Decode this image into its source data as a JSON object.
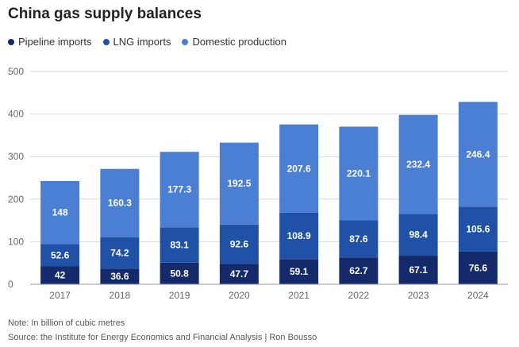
{
  "header": {
    "title": "China gas supply balances"
  },
  "footer": {
    "note": "Note: In billion of cubic metres",
    "source": "Source: the Institute for Energy Economics and Financial Analysis | Ron Bousso"
  },
  "chart_data": {
    "type": "bar",
    "stacked": true,
    "title": "China gas supply balances",
    "categories": [
      "2017",
      "2018",
      "2019",
      "2020",
      "2021",
      "2022",
      "2023",
      "2024"
    ],
    "series": [
      {
        "name": "Pipeline imports",
        "color": "#142a6b",
        "values": [
          42,
          36.6,
          50.8,
          47.7,
          59.1,
          62.7,
          67.1,
          76.6
        ]
      },
      {
        "name": "LNG imports",
        "color": "#1f52a6",
        "values": [
          52.6,
          74.2,
          83.1,
          92.6,
          108.9,
          87.6,
          98.4,
          105.6
        ]
      },
      {
        "name": "Domestic production",
        "color": "#4a7fd4",
        "values": [
          148,
          160.3,
          177.3,
          192.5,
          207.6,
          220.1,
          232.4,
          246.4
        ]
      }
    ],
    "value_labels": [
      [
        "42",
        "36.6",
        "50.8",
        "47.7",
        "59.1",
        "62.7",
        "67.1",
        "76.6"
      ],
      [
        "52.6",
        "74.2",
        "83.1",
        "92.6",
        "108.9",
        "87.6",
        "98.4",
        "105.6"
      ],
      [
        "148",
        "160.3",
        "177.3",
        "192.5",
        "207.6",
        "220.1",
        "232.4",
        "246.4"
      ]
    ],
    "yticks": [
      "0",
      "100",
      "200",
      "300",
      "400",
      "500"
    ],
    "ytick_values": [
      0,
      100,
      200,
      300,
      400,
      500
    ],
    "ylim": [
      0,
      500
    ],
    "xlabel": "",
    "ylabel": "",
    "grid": true,
    "legend_position": "top-left"
  }
}
